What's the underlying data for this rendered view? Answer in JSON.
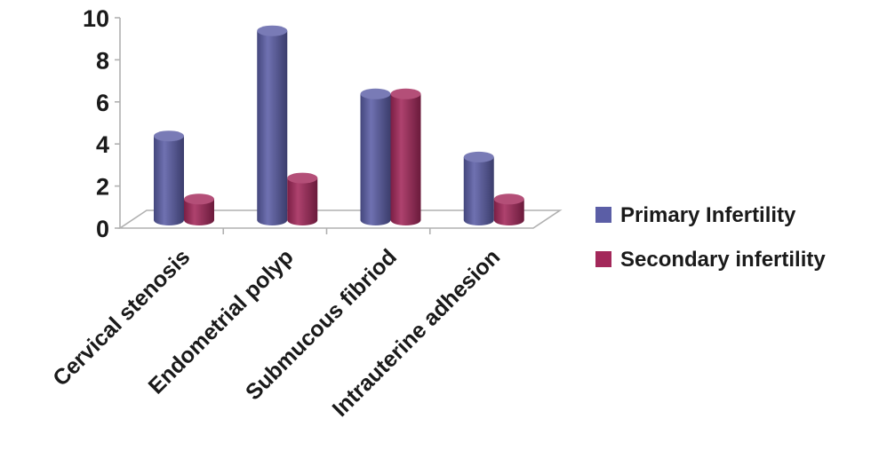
{
  "chart_data": {
    "type": "bar",
    "categories": [
      "Cervical stenosis",
      "Endometrial polyp",
      "Submucous fibriod",
      "Intrauterine adhesion"
    ],
    "series": [
      {
        "name": "Primary Infertility",
        "values": [
          4,
          9,
          6,
          3
        ],
        "color": "#5b5ea6"
      },
      {
        "name": "Secondary infertility",
        "values": [
          1,
          2,
          6,
          1
        ],
        "color": "#a3285a"
      }
    ],
    "ylim": [
      0,
      10
    ],
    "yticks": [
      0,
      2,
      4,
      6,
      8,
      10
    ],
    "title": "",
    "xlabel": "",
    "ylabel": "",
    "legend": "right",
    "grid": false,
    "three_d": true
  }
}
